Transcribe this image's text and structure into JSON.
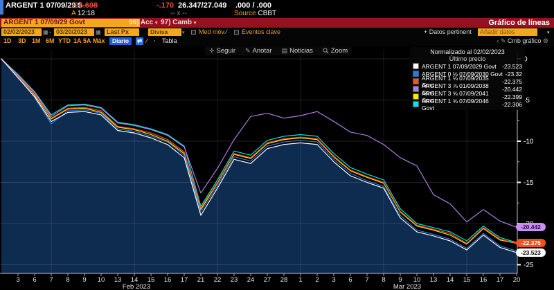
{
  "quote_bar": {
    "ticker": "ARGENT 1 07/09/29 $",
    "price": "26.698",
    "change": "-.170",
    "bid_ask": "26.347/27.049",
    "yield_pair": ".000 / .000",
    "time_prefix": "A",
    "time": "12:18",
    "mid": "-- x --",
    "source_label": "Source",
    "source_value": "CBBT"
  },
  "menu_bar": {
    "security_field": "ARGENT 1 07/09/29 Govt",
    "actions_label": "96) Acc",
    "edit_label": "97) Camb",
    "screen_title": "Gráfico de líneas"
  },
  "settings_bar": {
    "date_from": "02/02/2023",
    "date_to": "03/20/2023",
    "price_field": "Last Px",
    "currency_field": "Divisa local",
    "mov_avg_label": "Med móv",
    "key_events_label": "Eventos clave",
    "datos_pertinent_label": "Datos pertinent",
    "add_data_field": "Añadir datos"
  },
  "period_bar": {
    "periods": [
      "1D",
      "3D",
      "1M",
      "6M",
      "YTD",
      "1A",
      "5A",
      "Máx"
    ],
    "frequency": "Diario",
    "table_label": "Tabla",
    "cmb_grafico_label": "Cmb gráfico"
  },
  "chart_toolbar": {
    "items": [
      "Seguir",
      "Anotar",
      "Noticias",
      "Zoom"
    ]
  },
  "legend": {
    "title": "Normalizado al 02/02/2023",
    "subtitle": "Último precio"
  },
  "chart_data": {
    "type": "line",
    "title": "Gráfico de líneas",
    "normalized_note": "Normalizado al 02/02/2023",
    "x_labels": [
      "",
      "3",
      "6",
      "7",
      "8",
      "9",
      "10",
      "13",
      "14",
      "15",
      "16",
      "17",
      "21",
      "22",
      "23",
      "24",
      "27",
      "28",
      "1",
      "2",
      "3",
      "6",
      "7",
      "8",
      "9",
      "10",
      "13",
      "14",
      "15",
      "16",
      "17",
      "20"
    ],
    "x_month_labels": [
      {
        "label": "Feb 2023",
        "x": 197
      },
      {
        "label": "Mar 2023",
        "x": 588
      }
    ],
    "ylim": [
      -25,
      0
    ],
    "y_ticks": [
      0,
      -5,
      -10,
      -15,
      -20,
      -25
    ],
    "grid": true,
    "legend_position": "top-right",
    "series": [
      {
        "name": "ARGENT 1 07/09/2029 Govt",
        "color": "#ffffff",
        "last_display": "-23.523",
        "values": [
          0,
          -2.3,
          -4.6,
          -7.6,
          -6.5,
          -6.4,
          -6.8,
          -8.7,
          -9.0,
          -9.6,
          -10.4,
          -12.0,
          -19.0,
          -15.7,
          -12.2,
          -12.7,
          -10.9,
          -10.4,
          -10.2,
          -10.4,
          -12.5,
          -14.2,
          -15.0,
          -15.7,
          -19.3,
          -21.0,
          -21.5,
          -22.1,
          -23.2,
          -21.4,
          -22.9,
          -23.523
        ]
      },
      {
        "name": "ARGENT 0 ⅛ 07/09/2030 Govt",
        "color": "#2678e8",
        "last_display": "-23.32",
        "values": [
          0,
          -2.2,
          -4.7,
          -7.9,
          -6.3,
          -6.2,
          -6.6,
          -8.5,
          -8.8,
          -9.4,
          -10.1,
          -11.7,
          -18.6,
          -15.4,
          -11.9,
          -12.4,
          -10.6,
          -10.1,
          -9.9,
          -10.1,
          -12.2,
          -13.9,
          -14.8,
          -15.5,
          -19.0,
          -20.8,
          -21.3,
          -21.9,
          -23.0,
          -21.2,
          -22.7,
          -23.32
        ]
      },
      {
        "name": "ARGENT 1 ⅛ 07/09/2035 Govt",
        "color": "#f4511e",
        "last_display": "-22.375",
        "values": [
          0,
          -2.1,
          -4.3,
          -7.2,
          -6.0,
          -5.9,
          -6.3,
          -8.2,
          -8.5,
          -9.0,
          -9.8,
          -11.3,
          -18.1,
          -15.0,
          -11.5,
          -12.0,
          -10.2,
          -9.7,
          -9.5,
          -9.7,
          -11.8,
          -13.5,
          -14.3,
          -15.0,
          -18.5,
          -20.2,
          -20.7,
          -21.2,
          -22.4,
          -20.5,
          -21.9,
          -22.375
        ]
      },
      {
        "name": "ARGENT 3 ⅞ 01/09/2038 Govt",
        "color": "#b07de0",
        "last_display": "-20.442",
        "values": [
          0,
          -2.0,
          -4.1,
          -7.0,
          -5.7,
          -5.6,
          -6.0,
          -7.8,
          -8.1,
          -8.6,
          -9.3,
          -10.7,
          -16.3,
          -13.3,
          -9.8,
          -7.0,
          -6.6,
          -7.2,
          -6.9,
          -6.4,
          -7.6,
          -8.9,
          -9.3,
          -10.4,
          -12.0,
          -13.0,
          -16.5,
          -17.6,
          -19.8,
          -18.3,
          -19.7,
          -20.442
        ]
      },
      {
        "name": "ARGENT 3 ⅝ 07/09/2041 Govt",
        "color": "#ffe800",
        "last_display": "-22.399",
        "values": [
          0,
          -2.1,
          -4.4,
          -7.3,
          -6.1,
          -6.0,
          -6.5,
          -8.3,
          -8.6,
          -9.2,
          -10.0,
          -11.5,
          -18.3,
          -15.1,
          -11.6,
          -12.1,
          -10.3,
          -9.8,
          -9.6,
          -9.8,
          -11.9,
          -13.6,
          -14.4,
          -15.1,
          -18.6,
          -20.3,
          -20.8,
          -21.4,
          -22.5,
          -20.6,
          -22.0,
          -22.399
        ]
      },
      {
        "name": "ARGENT 1 ⅝ 07/09/2046 Govt",
        "color": "#00e5e5",
        "last_display": "-22.306",
        "values": [
          0,
          -1.9,
          -4.0,
          -6.8,
          -5.6,
          -5.5,
          -5.9,
          -7.7,
          -8.0,
          -8.5,
          -9.2,
          -10.6,
          -17.9,
          -14.7,
          -11.2,
          -11.7,
          -9.9,
          -9.4,
          -9.2,
          -9.4,
          -11.5,
          -13.2,
          -14.0,
          -14.7,
          -18.2,
          -20.0,
          -20.5,
          -21.0,
          -22.1,
          -20.3,
          -21.7,
          -22.306
        ]
      }
    ],
    "end_labels": [
      {
        "value": -20.442,
        "label": "-20.442",
        "bg": "#c990f2",
        "fg": "#25004d"
      },
      {
        "value": -22.375,
        "label": "-22.375",
        "bg": "#f4511e",
        "fg": "#ffffff"
      },
      {
        "value": -23.523,
        "label": "-23.523",
        "bg": "#ffffff",
        "fg": "#000000"
      }
    ],
    "fill_color": "#0e2b50",
    "vgrid_indices": [
      3,
      8,
      13,
      18,
      23,
      28
    ]
  }
}
